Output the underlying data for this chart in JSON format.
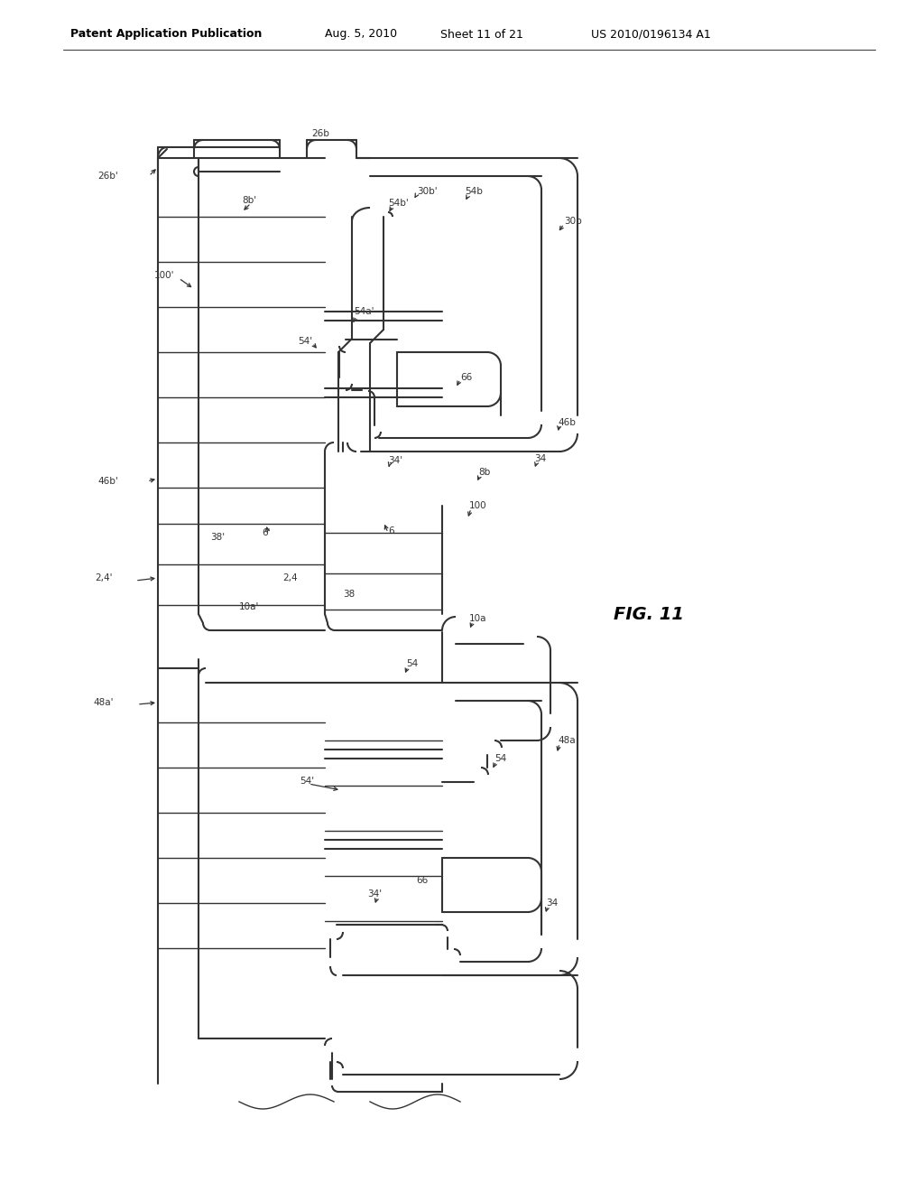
{
  "bg_color": "#ffffff",
  "line_color": "#333333",
  "header_left": "Patent Application Publication",
  "header_date": "Aug. 5, 2010",
  "header_sheet": "Sheet 11 of 21",
  "header_patent": "US 2010/0196134 A1",
  "fig_label": "FIG. 11",
  "lw": 1.5,
  "lw_thin": 1.0
}
